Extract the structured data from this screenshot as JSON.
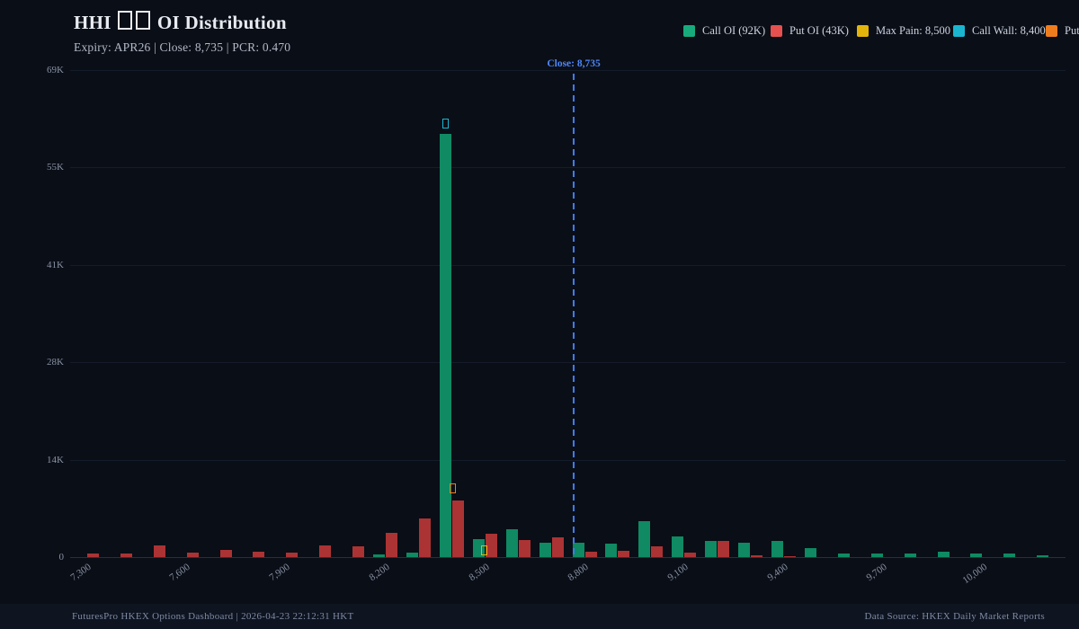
{
  "header": {
    "title_prefix": "HHI",
    "title_suffix": "OI Distribution",
    "subtitle": "Expiry: APR26 | Close: 8,735 | PCR: 0.470"
  },
  "legend": {
    "items": [
      {
        "label": "Call OI (92K)",
        "color": "#17ab7c"
      },
      {
        "label": "Put OI (43K)",
        "color": "#e65150"
      },
      {
        "label": "Max Pain: 8,500",
        "color": "#e3b50c"
      },
      {
        "label": "Call Wall: 8,400",
        "color": "#1ab6d0"
      },
      {
        "label": "Put W",
        "color": "#ef7d1d"
      }
    ]
  },
  "chart_data": {
    "type": "bar",
    "title": "HHI OI Distribution",
    "xlabel": "",
    "ylabel": "",
    "ylim": [
      0,
      69000
    ],
    "grid": true,
    "legend_position": "top-right",
    "x_strikes": [
      7300,
      7400,
      7500,
      7600,
      7700,
      7800,
      7900,
      8000,
      8100,
      8200,
      8300,
      8400,
      8500,
      8600,
      8700,
      8800,
      8900,
      9000,
      9100,
      9200,
      9300,
      9400,
      9500,
      9600,
      9700,
      9800,
      9900,
      10000,
      10100,
      10200
    ],
    "x_tick_labels": [
      "7,300",
      "7,600",
      "7,900",
      "8,200",
      "8,500",
      "8,800",
      "9,100",
      "9,400",
      "9,700",
      "10,000"
    ],
    "x_tick_every": 3,
    "y_ticks": [
      {
        "label": "0",
        "value": 0
      },
      {
        "label": "14K",
        "value": 13800
      },
      {
        "label": "28K",
        "value": 27600
      },
      {
        "label": "41K",
        "value": 41400
      },
      {
        "label": "55K",
        "value": 55200
      },
      {
        "label": "69K",
        "value": 69000
      }
    ],
    "series": [
      {
        "name": "Call OI",
        "total_label": "92K",
        "color": "#0f8a62",
        "values": [
          0,
          0,
          0,
          0,
          0,
          0,
          0,
          0,
          0,
          400,
          600,
          60000,
          2600,
          3900,
          2100,
          2100,
          1900,
          5100,
          2900,
          2300,
          2000,
          2300,
          1300,
          500,
          550,
          450,
          800,
          500,
          450,
          250
        ]
      },
      {
        "name": "Put OI",
        "total_label": "43K",
        "color": "#ac3334",
        "values": [
          500,
          500,
          1700,
          600,
          1000,
          750,
          600,
          1700,
          1500,
          3400,
          5500,
          8000,
          3300,
          2400,
          2800,
          800,
          900,
          1500,
          600,
          2300,
          200,
          150,
          0,
          0,
          0,
          0,
          0,
          0,
          0,
          0
        ]
      }
    ],
    "markers": {
      "close": {
        "value": 8735,
        "label": "Close: 8,735",
        "color": "#3e7cf0"
      },
      "max_pain": {
        "strike": 8500,
        "color": "#e3b50c"
      },
      "call_wall": {
        "strike": 8400,
        "color": "#1ab6d0"
      },
      "put_wall": {
        "strike": 8400,
        "color": "#ef7d1d"
      }
    }
  },
  "footer": {
    "left": "FuturesPro HKEX Options Dashboard | 2026-04-23 22:12:31 HKT",
    "right": "Data Source: HKEX Daily Market Reports"
  }
}
